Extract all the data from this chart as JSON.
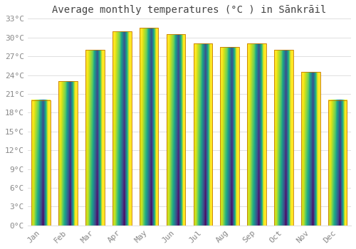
{
  "title": "Average monthly temperatures (°C ) in Sānkrāil",
  "months": [
    "Jan",
    "Feb",
    "Mar",
    "Apr",
    "May",
    "Jun",
    "Jul",
    "Aug",
    "Sep",
    "Oct",
    "Nov",
    "Dec"
  ],
  "values": [
    20.0,
    23.0,
    28.0,
    31.0,
    31.5,
    30.5,
    29.0,
    28.5,
    29.0,
    28.0,
    24.5,
    20.0
  ],
  "bar_color_top": "#FFCC44",
  "bar_color_bottom": "#E88000",
  "bar_edge_color": "#C87800",
  "ylim": [
    0,
    33
  ],
  "yticks": [
    0,
    3,
    6,
    9,
    12,
    15,
    18,
    21,
    24,
    27,
    30,
    33
  ],
  "ytick_labels": [
    "0°C",
    "3°C",
    "6°C",
    "9°C",
    "12°C",
    "15°C",
    "18°C",
    "21°C",
    "24°C",
    "27°C",
    "30°C",
    "33°C"
  ],
  "background_color": "#FFFFFF",
  "grid_color": "#E0E0E0",
  "title_fontsize": 10,
  "tick_fontsize": 8,
  "bar_width": 0.7
}
